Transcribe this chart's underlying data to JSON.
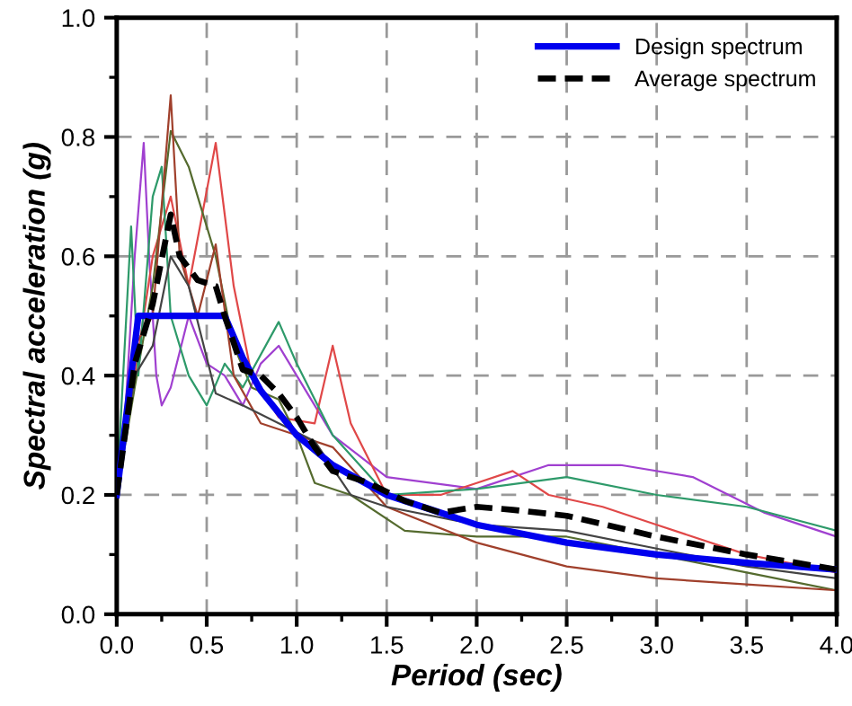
{
  "chart_data": {
    "type": "line",
    "xlabel": "Period (sec)",
    "ylabel": "Spectral acceleration (g)",
    "xlim": [
      0,
      4
    ],
    "ylim": [
      0,
      1
    ],
    "xticks": [
      {
        "value": 0,
        "label": "0.0"
      },
      {
        "value": 0.5,
        "label": "0.5"
      },
      {
        "value": 1,
        "label": "1.0"
      },
      {
        "value": 1.5,
        "label": "1.5"
      },
      {
        "value": 2,
        "label": "2.0"
      },
      {
        "value": 2.5,
        "label": "2.5"
      },
      {
        "value": 3,
        "label": "3.0"
      },
      {
        "value": 3.5,
        "label": "3.5"
      },
      {
        "value": 4,
        "label": "4.0"
      }
    ],
    "yticks": [
      {
        "value": 0,
        "label": "0.0"
      },
      {
        "value": 0.2,
        "label": "0.2"
      },
      {
        "value": 0.4,
        "label": "0.4"
      },
      {
        "value": 0.6,
        "label": "0.6"
      },
      {
        "value": 0.8,
        "label": "0.8"
      },
      {
        "value": 1,
        "label": "1.0"
      }
    ],
    "grid": true,
    "legend": "top right",
    "marker": "none",
    "series": [
      {
        "color": "#a040d0",
        "line_style": "solid",
        "x": [
          0,
          0.05,
          0.1,
          0.15,
          0.18,
          0.22,
          0.25,
          0.3,
          0.4,
          0.5,
          0.6,
          0.7,
          0.8,
          0.9,
          1.0,
          1.2,
          1.5,
          2.0,
          2.4,
          2.8,
          3.2,
          3.6,
          4.0
        ],
        "values": [
          0.2,
          0.35,
          0.6,
          0.79,
          0.6,
          0.4,
          0.35,
          0.38,
          0.5,
          0.42,
          0.4,
          0.35,
          0.42,
          0.45,
          0.4,
          0.3,
          0.23,
          0.21,
          0.25,
          0.25,
          0.23,
          0.17,
          0.13
        ]
      },
      {
        "color": "#e04848",
        "line_style": "solid",
        "x": [
          0,
          0.1,
          0.2,
          0.3,
          0.4,
          0.55,
          0.65,
          0.75,
          0.9,
          1.1,
          1.2,
          1.3,
          1.5,
          1.8,
          2.0,
          2.2,
          2.4,
          2.7,
          3.0,
          3.5,
          4.0
        ],
        "values": [
          0.2,
          0.4,
          0.6,
          0.7,
          0.55,
          0.79,
          0.55,
          0.4,
          0.33,
          0.32,
          0.45,
          0.32,
          0.2,
          0.2,
          0.22,
          0.24,
          0.2,
          0.18,
          0.15,
          0.1,
          0.07
        ]
      },
      {
        "color": "#556b2f",
        "line_style": "solid",
        "x": [
          0,
          0.1,
          0.2,
          0.3,
          0.4,
          0.5,
          0.55,
          0.65,
          0.75,
          0.9,
          1.0,
          1.1,
          1.3,
          1.6,
          2.0,
          2.5,
          3.0,
          3.5,
          4.0
        ],
        "values": [
          0.2,
          0.38,
          0.55,
          0.81,
          0.75,
          0.65,
          0.6,
          0.45,
          0.38,
          0.36,
          0.3,
          0.22,
          0.2,
          0.14,
          0.13,
          0.13,
          0.1,
          0.07,
          0.04
        ]
      },
      {
        "color": "#2e9a6a",
        "line_style": "solid",
        "x": [
          0,
          0.08,
          0.12,
          0.2,
          0.25,
          0.3,
          0.4,
          0.5,
          0.6,
          0.7,
          0.9,
          1.0,
          1.2,
          1.5,
          2.0,
          2.5,
          3.0,
          3.5,
          4.0
        ],
        "values": [
          0.2,
          0.65,
          0.4,
          0.7,
          0.75,
          0.5,
          0.4,
          0.35,
          0.42,
          0.38,
          0.49,
          0.42,
          0.3,
          0.2,
          0.21,
          0.23,
          0.2,
          0.18,
          0.14
        ]
      },
      {
        "color": "#a0402c",
        "line_style": "solid",
        "x": [
          0,
          0.1,
          0.2,
          0.3,
          0.35,
          0.45,
          0.55,
          0.65,
          0.8,
          1.0,
          1.2,
          1.5,
          2.0,
          2.5,
          3.0,
          3.5,
          4.0
        ],
        "values": [
          0.2,
          0.45,
          0.5,
          0.87,
          0.6,
          0.5,
          0.62,
          0.4,
          0.32,
          0.3,
          0.28,
          0.18,
          0.12,
          0.08,
          0.06,
          0.05,
          0.04
        ]
      },
      {
        "color": "#444444",
        "line_style": "solid",
        "x": [
          0,
          0.1,
          0.2,
          0.3,
          0.4,
          0.55,
          0.7,
          0.9,
          1.1,
          1.3,
          1.5,
          2.0,
          2.5,
          3.0,
          3.5,
          4.0
        ],
        "values": [
          0.2,
          0.4,
          0.45,
          0.6,
          0.55,
          0.37,
          0.35,
          0.32,
          0.29,
          0.2,
          0.18,
          0.15,
          0.14,
          0.11,
          0.08,
          0.06
        ]
      },
      {
        "name": "Design spectrum",
        "color": "#0000ee",
        "line_style": "solid",
        "x": [
          0,
          0.12,
          0.6,
          0.7,
          0.8,
          1.0,
          1.2,
          1.5,
          2.0,
          2.5,
          3.0,
          3.5,
          4.0
        ],
        "values": [
          0.2,
          0.5,
          0.5,
          0.43,
          0.375,
          0.3,
          0.25,
          0.2,
          0.15,
          0.12,
          0.1,
          0.086,
          0.075
        ]
      },
      {
        "name": "Average spectrum",
        "color": "#000000",
        "line_style": "dashed",
        "x": [
          0,
          0.1,
          0.2,
          0.3,
          0.35,
          0.45,
          0.55,
          0.6,
          0.7,
          0.8,
          0.9,
          1.0,
          1.1,
          1.2,
          1.4,
          1.6,
          1.8,
          2.0,
          2.2,
          2.5,
          3.0,
          3.5,
          4.0
        ],
        "values": [
          0.2,
          0.42,
          0.52,
          0.67,
          0.6,
          0.56,
          0.55,
          0.5,
          0.41,
          0.4,
          0.37,
          0.33,
          0.28,
          0.24,
          0.22,
          0.19,
          0.17,
          0.18,
          0.175,
          0.165,
          0.13,
          0.1,
          0.075
        ]
      }
    ]
  }
}
